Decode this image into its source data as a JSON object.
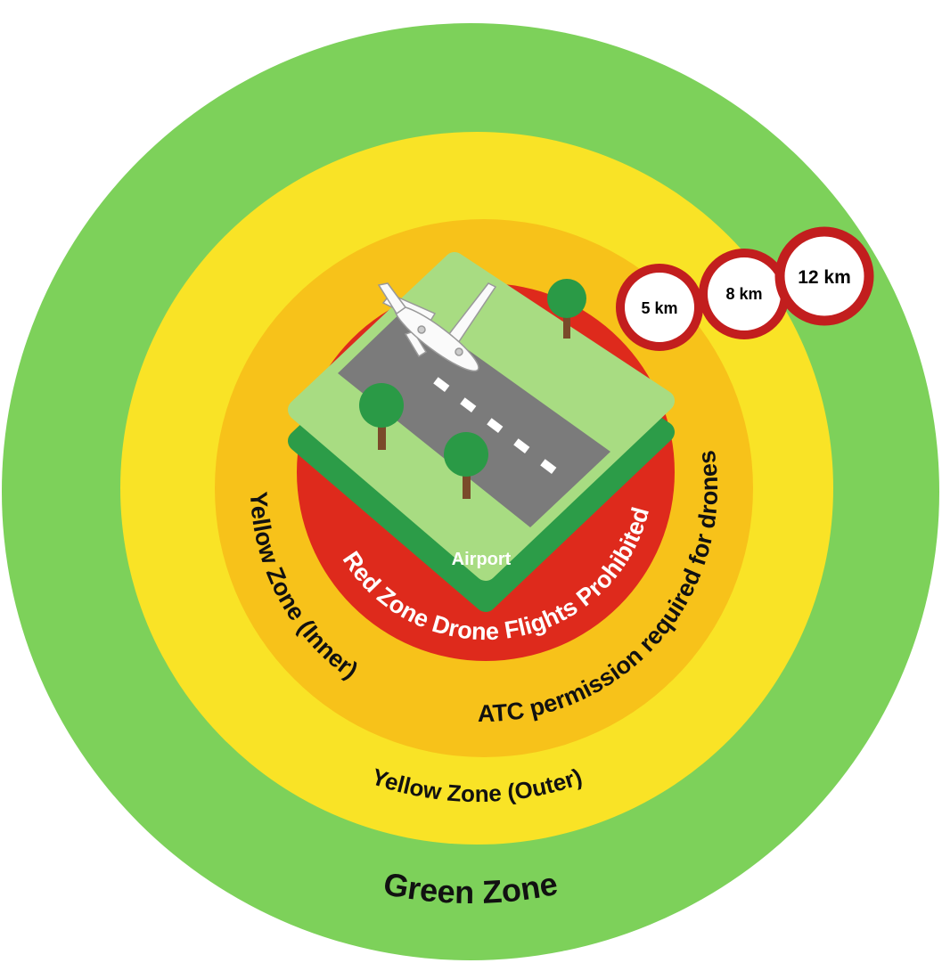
{
  "zones": {
    "green": "Green  Zone",
    "yellow_outer": "Yellow Zone (Outer)",
    "yellow_inner": "Yellow Zone (Inner)",
    "atc": "ATC permission required for drones",
    "red": "Red Zone Drone Flights Prohibited"
  },
  "airport": "Airport",
  "signs": [
    "5 km",
    "8 km",
    "12 km"
  ]
}
